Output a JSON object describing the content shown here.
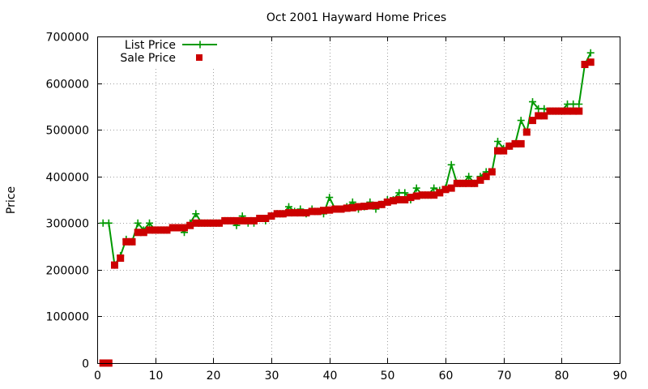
{
  "chart_data": {
    "type": "line",
    "title": "Oct 2001 Hayward Home Prices",
    "xlabel": "",
    "ylabel": "Price",
    "xlim": [
      0,
      90
    ],
    "ylim": [
      0,
      700000
    ],
    "x_ticks": [
      0,
      10,
      20,
      30,
      40,
      50,
      60,
      70,
      80,
      90
    ],
    "y_ticks": [
      0,
      100000,
      200000,
      300000,
      400000,
      500000,
      600000,
      700000
    ],
    "grid": true,
    "legend": "top-left",
    "series": [
      {
        "name": "List Price",
        "color": "#009900",
        "marker": "plus",
        "line": true,
        "x": [
          1,
          2,
          3,
          4,
          5,
          6,
          7,
          8,
          9,
          10,
          11,
          12,
          13,
          14,
          15,
          16,
          17,
          18,
          19,
          20,
          21,
          22,
          23,
          24,
          25,
          26,
          27,
          28,
          29,
          30,
          31,
          32,
          33,
          34,
          35,
          36,
          37,
          38,
          39,
          40,
          41,
          42,
          43,
          44,
          45,
          46,
          47,
          48,
          49,
          50,
          51,
          52,
          53,
          54,
          55,
          56,
          57,
          58,
          59,
          60,
          61,
          62,
          63,
          64,
          65,
          66,
          67,
          68,
          69,
          70,
          71,
          72,
          73,
          74,
          75,
          76,
          77,
          78,
          79,
          80,
          81,
          82,
          83,
          84,
          85
        ],
        "y": [
          300000,
          300000,
          210000,
          230000,
          265000,
          260000,
          300000,
          285000,
          300000,
          285000,
          285000,
          285000,
          290000,
          290000,
          280000,
          300000,
          320000,
          300000,
          300000,
          300000,
          300000,
          305000,
          305000,
          295000,
          315000,
          300000,
          300000,
          310000,
          305000,
          315000,
          320000,
          320000,
          335000,
          325000,
          330000,
          320000,
          330000,
          325000,
          320000,
          355000,
          330000,
          330000,
          335000,
          345000,
          330000,
          335000,
          345000,
          330000,
          340000,
          350000,
          350000,
          365000,
          365000,
          350000,
          375000,
          360000,
          360000,
          375000,
          370000,
          375000,
          425000,
          385000,
          385000,
          400000,
          385000,
          400000,
          410000,
          410000,
          475000,
          460000,
          465000,
          470000,
          520000,
          495000,
          560000,
          545000,
          545000,
          540000,
          540000,
          540000,
          555000,
          555000,
          555000,
          640000,
          665000
        ]
      },
      {
        "name": "Sale Price",
        "color": "#cc0000",
        "marker": "square",
        "line": false,
        "x": [
          1,
          2,
          3,
          4,
          5,
          6,
          7,
          8,
          9,
          10,
          11,
          12,
          13,
          14,
          15,
          16,
          17,
          18,
          19,
          20,
          21,
          22,
          23,
          24,
          25,
          26,
          27,
          28,
          29,
          30,
          31,
          32,
          33,
          34,
          35,
          36,
          37,
          38,
          39,
          40,
          41,
          42,
          43,
          44,
          45,
          46,
          47,
          48,
          49,
          50,
          51,
          52,
          53,
          54,
          55,
          56,
          57,
          58,
          59,
          60,
          61,
          62,
          63,
          64,
          65,
          66,
          67,
          68,
          69,
          70,
          71,
          72,
          73,
          74,
          75,
          76,
          77,
          78,
          79,
          80,
          81,
          82,
          83,
          84,
          85
        ],
        "y": [
          0,
          0,
          210000,
          225000,
          260000,
          260000,
          280000,
          280000,
          285000,
          285000,
          285000,
          285000,
          290000,
          290000,
          290000,
          295000,
          300000,
          300000,
          300000,
          300000,
          300000,
          305000,
          305000,
          305000,
          305000,
          305000,
          305000,
          310000,
          310000,
          315000,
          320000,
          320000,
          322000,
          322000,
          322000,
          322000,
          325000,
          325000,
          327000,
          328000,
          330000,
          330000,
          332000,
          333000,
          335000,
          336000,
          337000,
          338000,
          340000,
          345000,
          348000,
          350000,
          350000,
          355000,
          358000,
          360000,
          360000,
          360000,
          365000,
          372000,
          375000,
          385000,
          385000,
          385000,
          385000,
          392000,
          400000,
          410000,
          455000,
          455000,
          465000,
          470000,
          470000,
          495000,
          520000,
          530000,
          530000,
          540000,
          540000,
          540000,
          540000,
          540000,
          540000,
          640000,
          645000
        ]
      }
    ]
  }
}
